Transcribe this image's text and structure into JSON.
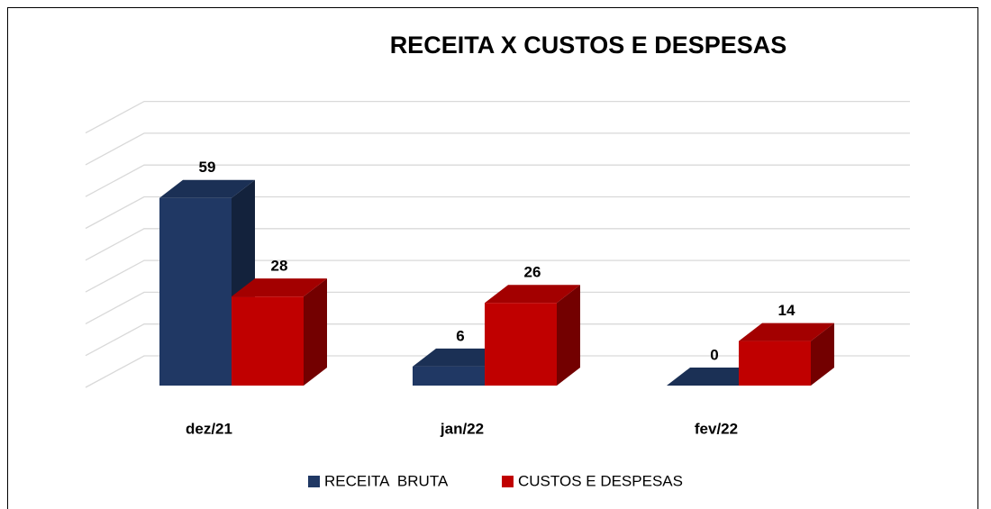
{
  "chart_data": {
    "type": "bar3d",
    "title": "RECEITA X CUSTOS E DESPESAS",
    "categories": [
      "dez/21",
      "jan/22",
      "fev/22"
    ],
    "series": [
      {
        "name": "RECEITA  BRUTA",
        "color": "#203864",
        "values": [
          59,
          6,
          0
        ]
      },
      {
        "name": "CUSTOS E DESPESAS",
        "color": "#c00000",
        "values": [
          28,
          26,
          14
        ]
      }
    ],
    "ylim": [
      0,
      80
    ],
    "yticks": [
      0,
      10,
      20,
      30,
      40,
      50,
      60,
      70,
      80
    ],
    "grid": true,
    "legend": "bottom"
  }
}
